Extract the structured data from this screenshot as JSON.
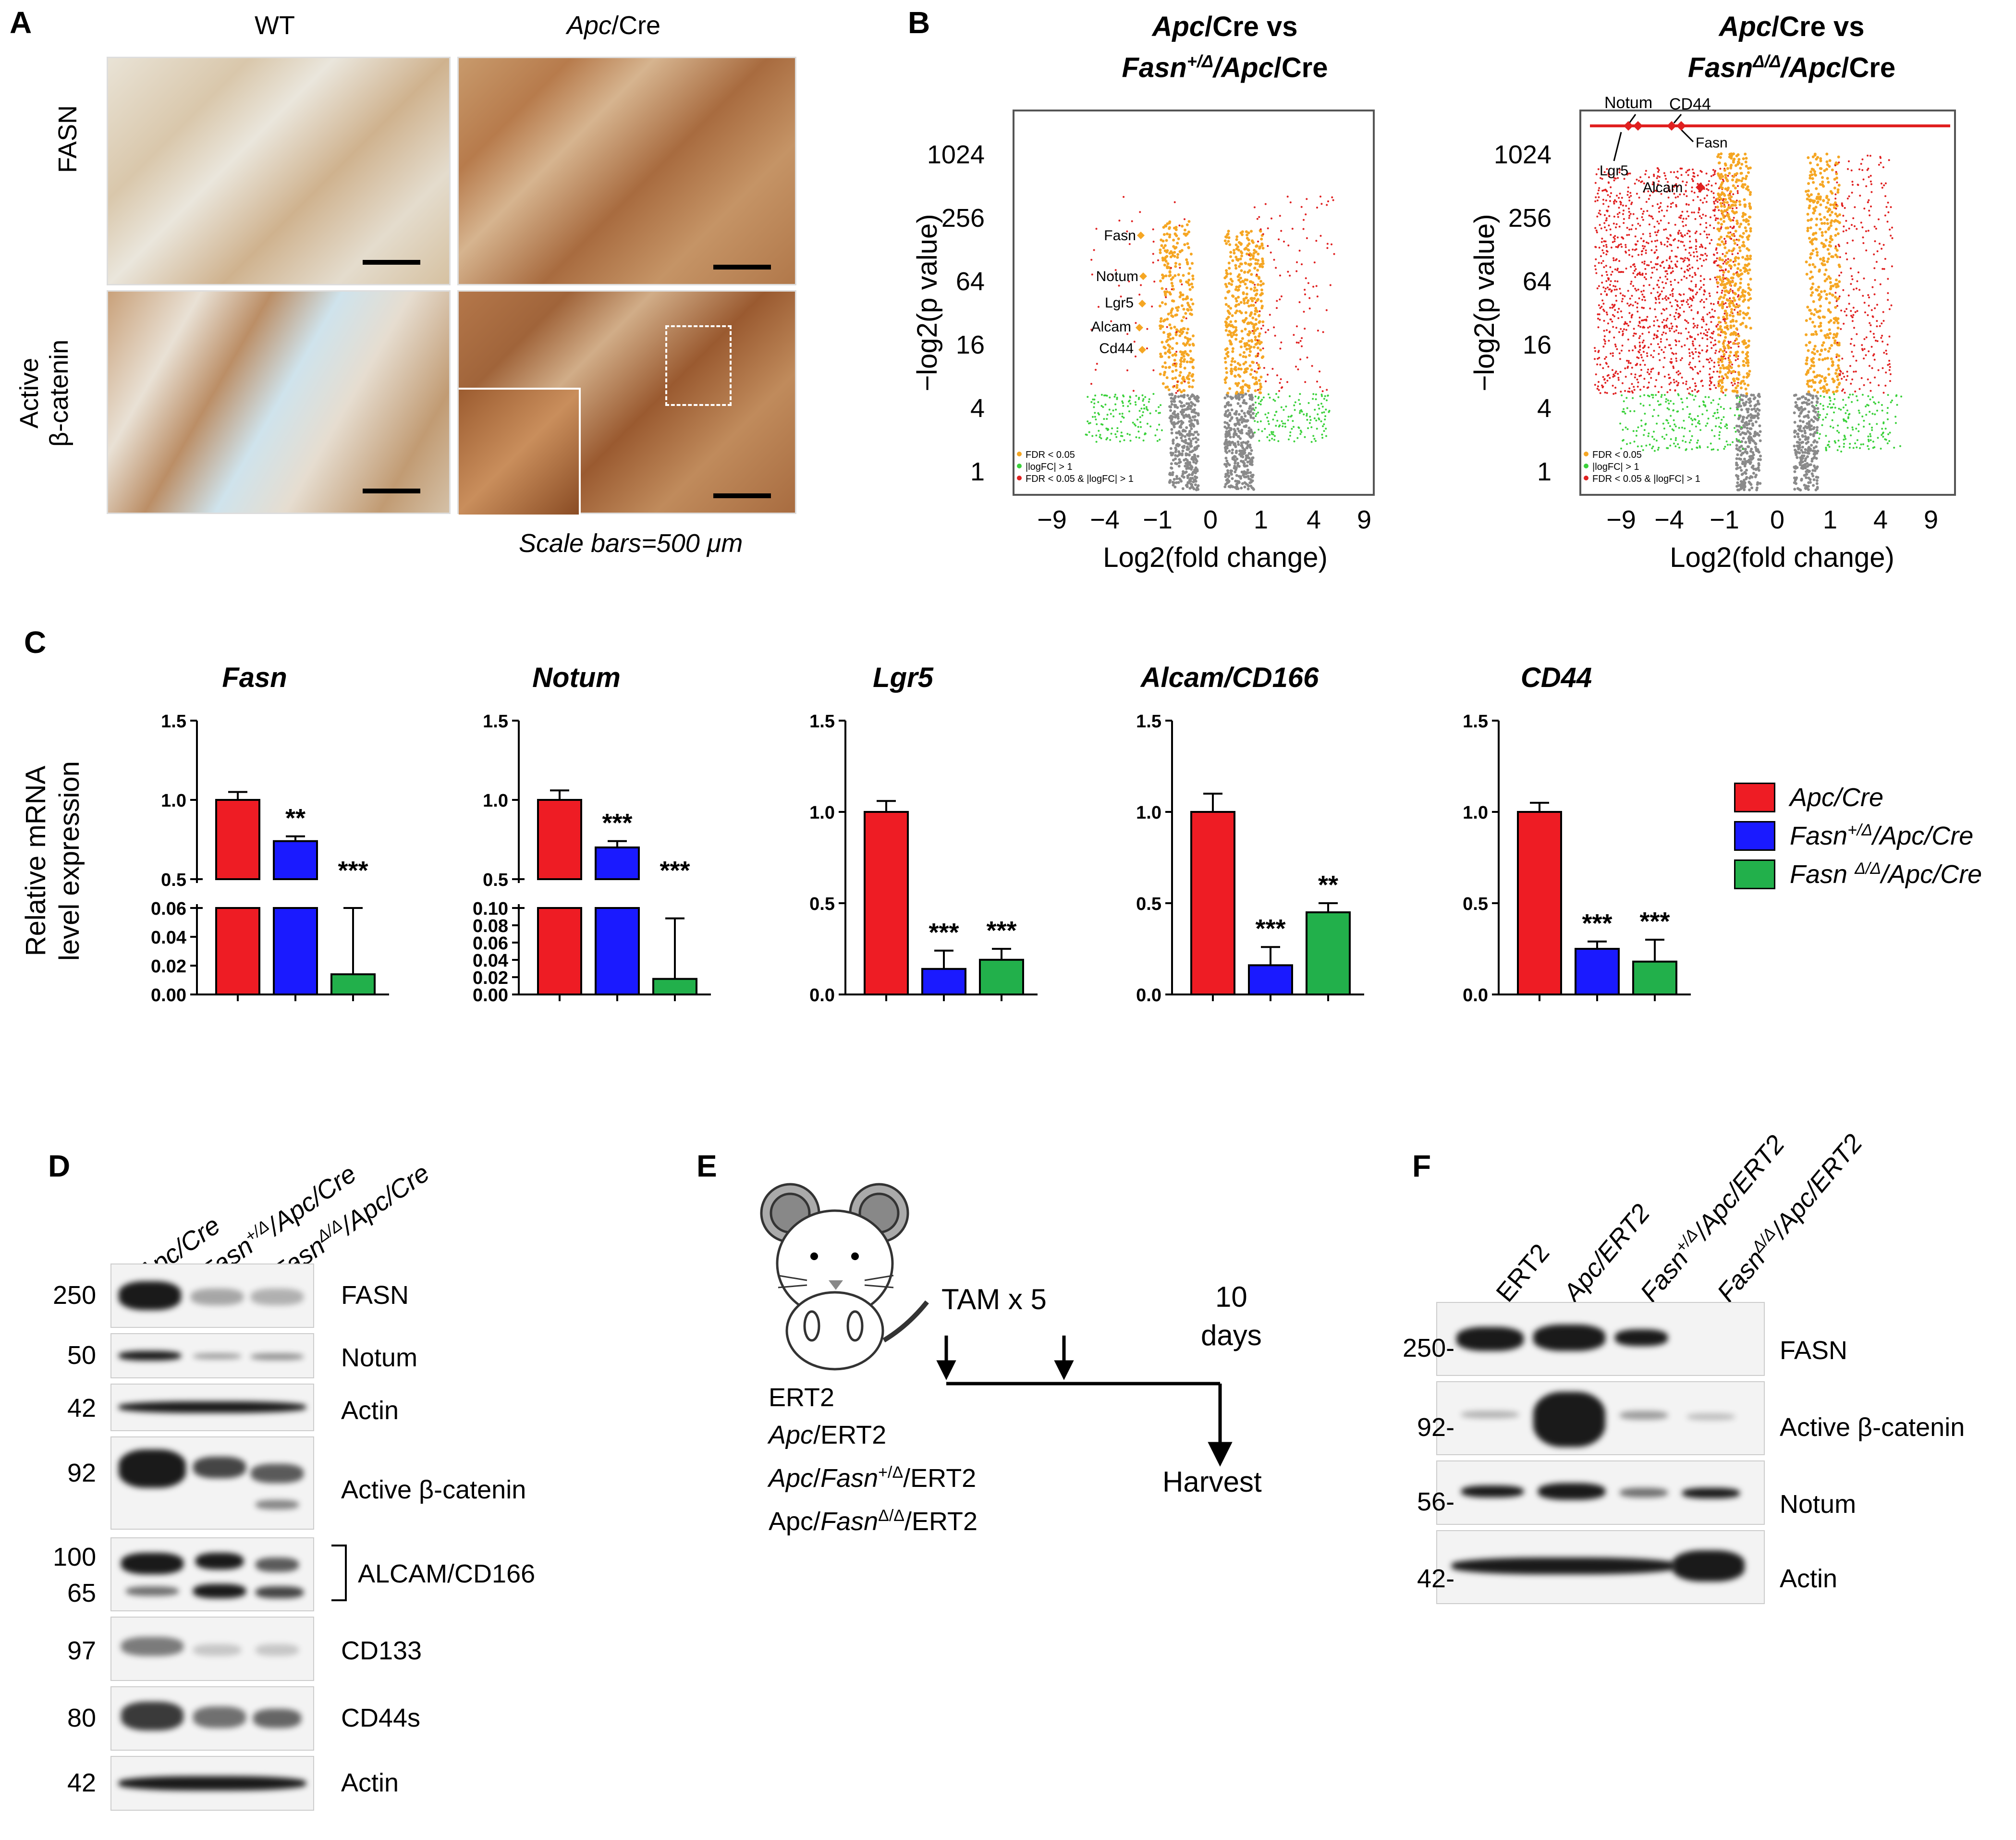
{
  "panelA": {
    "label": "A",
    "col_wt": "WT",
    "col_apc_italic": "Apc",
    "col_apc_rest": "/Cre",
    "row_fasn": "FASN",
    "row_active_1": "Active",
    "row_active_2": "β-catenin",
    "scale_note": "Scale bars=500 μm"
  },
  "panelB": {
    "label": "B",
    "left": {
      "title_line1_a": "Apc",
      "title_line1_b": "/Cre vs",
      "title_line2_a": "Fasn",
      "title_line2_sup": "+/Δ",
      "title_line2_b": "/Apc",
      "title_line2_c": "/Cre",
      "ylabel": "−log2(p value)",
      "xlabel": "Log2(fold change)",
      "yticks": [
        "1024",
        "256",
        "64",
        "16",
        "4",
        "1"
      ],
      "xticks": [
        "−9",
        "−4",
        "−1",
        "0",
        "1",
        "4",
        "9"
      ],
      "gene_labels": [
        "Fasn",
        "Notum",
        "Lgr5",
        "Alcam",
        "Cd44"
      ],
      "legend": [
        "FDR < 0.05",
        "|logFC| > 1",
        "FDR < 0.05 & |logFC| > 1"
      ]
    },
    "right": {
      "title_line1_a": "Apc",
      "title_line1_b": "/Cre vs",
      "title_line2_a": "Fasn",
      "title_line2_sup": "Δ/Δ",
      "title_line2_b": "/Apc",
      "title_line2_c": "/Cre",
      "ylabel": "−log2(p value)",
      "xlabel": "Log2(fold change)",
      "yticks": [
        "1024",
        "256",
        "64",
        "16",
        "4",
        "1"
      ],
      "xticks": [
        "−9",
        "−4",
        "−1",
        "0",
        "1",
        "4",
        "9"
      ],
      "gene_labels": [
        "Notum",
        "CD44",
        "Lgr5",
        "Fasn",
        "Alcam"
      ],
      "legend": [
        "FDR < 0.05",
        "|logFC| > 1",
        "FDR < 0.05 & |logFC| > 1"
      ]
    },
    "colors": {
      "fdr": "#f5a623",
      "logfc": "#3ad13a",
      "both": "#e02020",
      "ns": "#8a8a8a"
    }
  },
  "panelC": {
    "label": "C",
    "ylabel_1": "Relative mRNA",
    "ylabel_2": "level expression",
    "legend": [
      {
        "name": "Apc/Cre",
        "color": "#ee1c24"
      },
      {
        "name_a": "Fasn",
        "sup": "+/Δ",
        "name_b": "/Apc/Cre",
        "color": "#1a1aff"
      },
      {
        "name_a": "Fasn ",
        "sup": "Δ/Δ",
        "name_b": "/Apc/Cre",
        "color": "#22b04b"
      }
    ],
    "chart_data": [
      {
        "type": "bar",
        "title": "Fasn",
        "categories": [
          "Apc/Cre",
          "Fasn+/Δ/Apc/Cre",
          "FasnΔ/Δ/Apc/Cre"
        ],
        "values": [
          1.0,
          0.74,
          0.014
        ],
        "errors": [
          0.05,
          0.03,
          0.06
        ],
        "significance": [
          "",
          "**",
          "***"
        ],
        "broken_axis": true,
        "upper_ticks": [
          "1.5",
          "1.0",
          "0.5"
        ],
        "lower_ticks": [
          "0.06",
          "0.04",
          "0.02",
          "0.00"
        ]
      },
      {
        "type": "bar",
        "title": "Notum",
        "categories": [
          "Apc/Cre",
          "Fasn+/Δ/Apc/Cre",
          "FasnΔ/Δ/Apc/Cre"
        ],
        "values": [
          1.0,
          0.7,
          0.018
        ],
        "errors": [
          0.06,
          0.04,
          0.07
        ],
        "significance": [
          "",
          "***",
          "***"
        ],
        "broken_axis": true,
        "upper_ticks": [
          "1.5",
          "1.0",
          "0.5"
        ],
        "lower_ticks": [
          "0.10",
          "0.08",
          "0.06",
          "0.04",
          "0.02",
          "0.00"
        ]
      },
      {
        "type": "bar",
        "title": "Lgr5",
        "categories": [
          "Apc/Cre",
          "Fasn+/Δ/Apc/Cre",
          "FasnΔ/Δ/Apc/Cre"
        ],
        "values": [
          1.0,
          0.14,
          0.19
        ],
        "errors": [
          0.06,
          0.1,
          0.06
        ],
        "significance": [
          "",
          "***",
          "***"
        ],
        "ylim": [
          0,
          1.5
        ],
        "yticks": [
          "1.5",
          "1.0",
          "0.5",
          "0.0"
        ]
      },
      {
        "type": "bar",
        "title": "Alcam/CD166",
        "categories": [
          "Apc/Cre",
          "Fasn+/Δ/Apc/Cre",
          "FasnΔ/Δ/Apc/Cre"
        ],
        "values": [
          1.0,
          0.16,
          0.45
        ],
        "errors": [
          0.1,
          0.1,
          0.05
        ],
        "significance": [
          "",
          "***",
          "**"
        ],
        "ylim": [
          0,
          1.5
        ],
        "yticks": [
          "1.5",
          "1.0",
          "0.5",
          "0.0"
        ]
      },
      {
        "type": "bar",
        "title": "CD44",
        "categories": [
          "Apc/Cre",
          "Fasn+/Δ/Apc/Cre",
          "FasnΔ/Δ/Apc/Cre"
        ],
        "values": [
          1.0,
          0.25,
          0.18
        ],
        "errors": [
          0.05,
          0.04,
          0.12
        ],
        "significance": [
          "",
          "***",
          "***"
        ],
        "ylim": [
          0,
          1.5
        ],
        "yticks": [
          "1.5",
          "1.0",
          "0.5",
          "0.0"
        ]
      }
    ]
  },
  "panelD": {
    "label": "D",
    "lanes": [
      {
        "a": "Apc",
        "b": "/Cre"
      },
      {
        "a": "Fasn",
        "sup": "+/Δ",
        "b": "/Apc/Cre"
      },
      {
        "a": "Fasn",
        "sup": "Δ/Δ",
        "b": "/Apc/Cre"
      }
    ],
    "blots": [
      {
        "mw": "250",
        "name": "FASN"
      },
      {
        "mw": "50",
        "name": "Notum"
      },
      {
        "mw": "42",
        "name": "Actin"
      },
      {
        "mw": "92",
        "name": "Active β-catenin"
      },
      {
        "mw": "100",
        "mw2": "65",
        "name": "ALCAM/CD166"
      },
      {
        "mw": "97",
        "name": "CD133"
      },
      {
        "mw": "80",
        "name": "CD44s"
      },
      {
        "mw": "42",
        "name": "Actin"
      }
    ]
  },
  "panelE": {
    "label": "E",
    "genotypes": [
      {
        "a": "ERT2"
      },
      {
        "a": "Apc",
        "b": "/ERT2"
      },
      {
        "a": "Apc",
        "b": "/",
        "c": "Fasn",
        "sup": "+/Δ",
        "d": "/ERT2"
      },
      {
        "a": "Apc/",
        "c": "Fasn",
        "sup": "Δ/Δ",
        "d": "/ERT2"
      }
    ],
    "tam": "TAM x 5",
    "days_1": "10",
    "days_2": "days",
    "harvest": "Harvest"
  },
  "panelF": {
    "label": "F",
    "lanes": [
      {
        "a": "ERT2"
      },
      {
        "a": "Apc",
        "b": "/ERT2"
      },
      {
        "a": "Fasn",
        "sup": "+/Δ",
        "b": "/Apc/ERT2"
      },
      {
        "a": "Fasn",
        "sup": "Δ/Δ",
        "b": "/Apc/ERT2"
      }
    ],
    "blots": [
      {
        "mw": "250-",
        "name": "FASN"
      },
      {
        "mw": "92-",
        "name": "Active β-catenin"
      },
      {
        "mw": "56-",
        "name": "Notum"
      },
      {
        "mw": "42-",
        "name": "Actin"
      }
    ]
  }
}
